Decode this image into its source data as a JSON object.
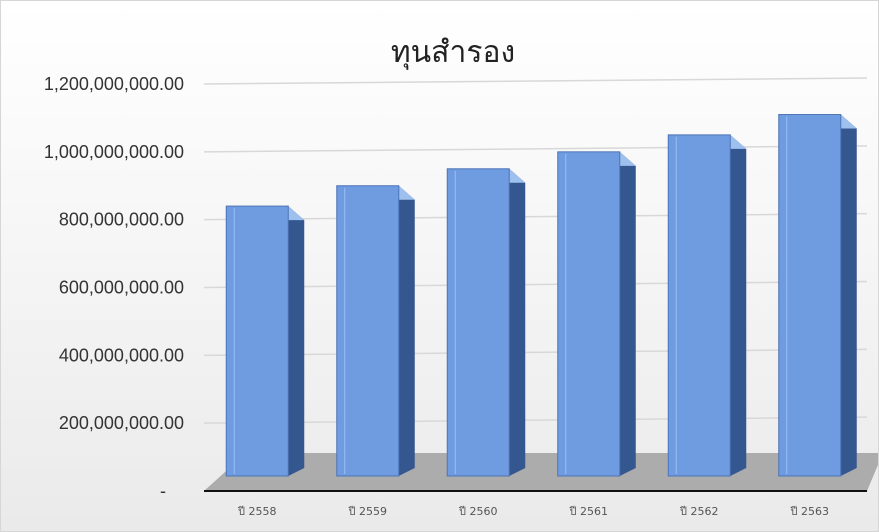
{
  "chart_data": {
    "type": "bar",
    "title": "ทุนสำรอง",
    "categories": [
      "ปี 2558",
      "ปี 2559",
      "ปี 2560",
      "ปี 2561",
      "ปี 2562",
      "ปี 2563"
    ],
    "series": [
      {
        "values": [
          840000000,
          900000000,
          950000000,
          1000000000,
          1050000000,
          1110000000
        ]
      }
    ],
    "yticks": [
      "-",
      "200,000,000.00",
      "400,000,000.00",
      "600,000,000.00",
      "800,000,000.00",
      "1,000,000,000.00",
      "1,200,000,000.00"
    ],
    "ylim": [
      0,
      1200000000
    ],
    "grid": true,
    "legend": "none",
    "style": "3d-column",
    "colors": {
      "bar_front": "#6f9be0",
      "bar_side": "#35578f",
      "bar_top": "#9ec0ef",
      "floor": "#a9a9a9",
      "grid": "#d8d8d8"
    }
  }
}
